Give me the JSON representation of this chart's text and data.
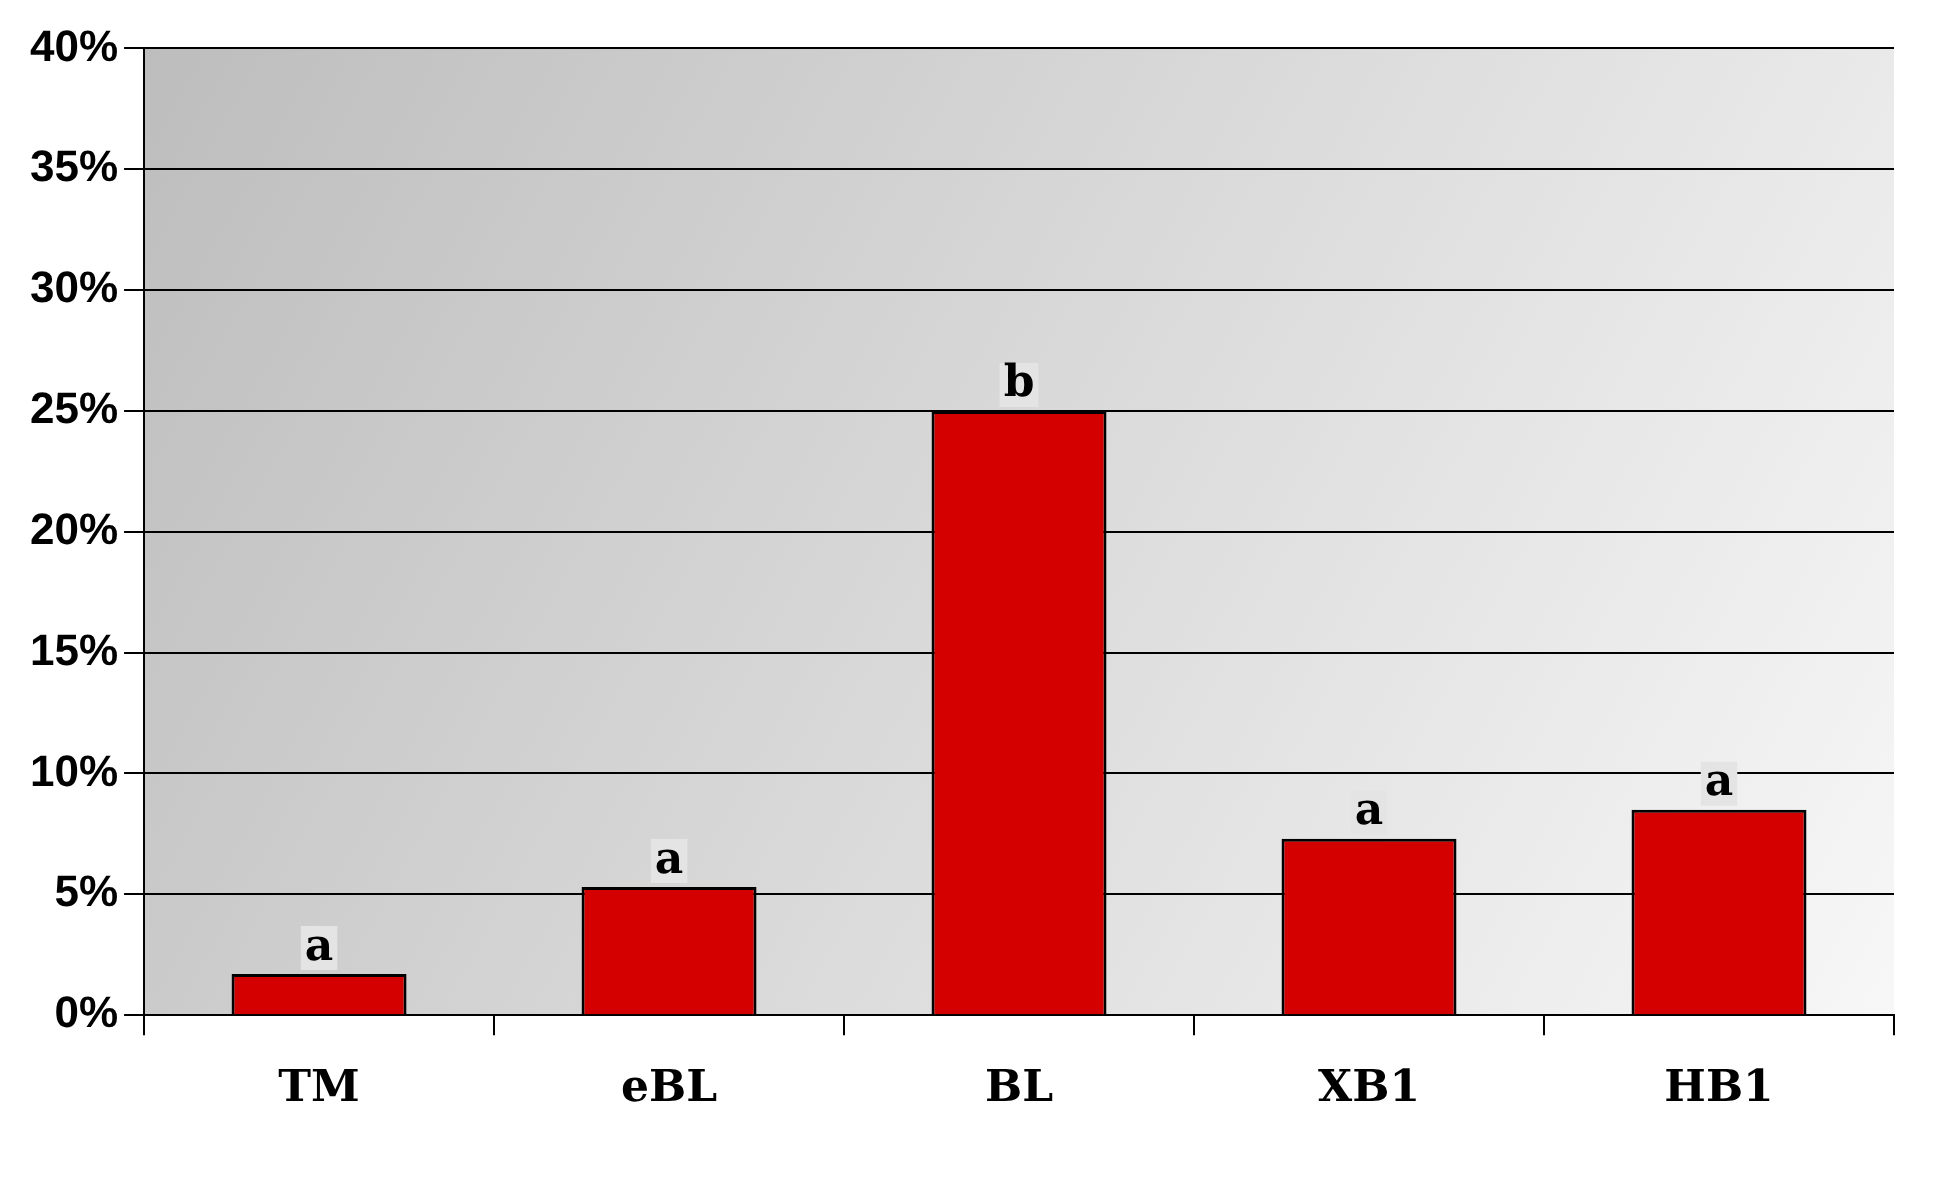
{
  "chart_data": {
    "type": "bar",
    "categories": [
      "TM",
      "eBL",
      "BL",
      "XB1",
      "HB1"
    ],
    "values": [
      1.7,
      5.3,
      25,
      7.3,
      8.5
    ],
    "color": "#d40000",
    "ylim": [
      0,
      40
    ],
    "yticks": [
      {
        "value": 0,
        "label": "0%"
      },
      {
        "value": 5,
        "label": "5%"
      },
      {
        "value": 10,
        "label": "10%"
      },
      {
        "value": 15,
        "label": "15%"
      },
      {
        "value": 20,
        "label": "20%"
      },
      {
        "value": 25,
        "label": "25%"
      },
      {
        "value": 30,
        "label": "30%"
      },
      {
        "value": 35,
        "label": "35%"
      },
      {
        "value": 40,
        "label": "40%"
      }
    ],
    "grid": "y",
    "annotations": [
      {
        "text": "a",
        "x": "TM",
        "y": 1.7
      },
      {
        "text": "a",
        "x": "eBL",
        "y": 5.3
      },
      {
        "text": "b",
        "x": "BL",
        "y": 25
      },
      {
        "text": "a",
        "x": "XB1",
        "y": 7.3
      },
      {
        "text": "a",
        "x": "HB1",
        "y": 8.5
      }
    ]
  }
}
